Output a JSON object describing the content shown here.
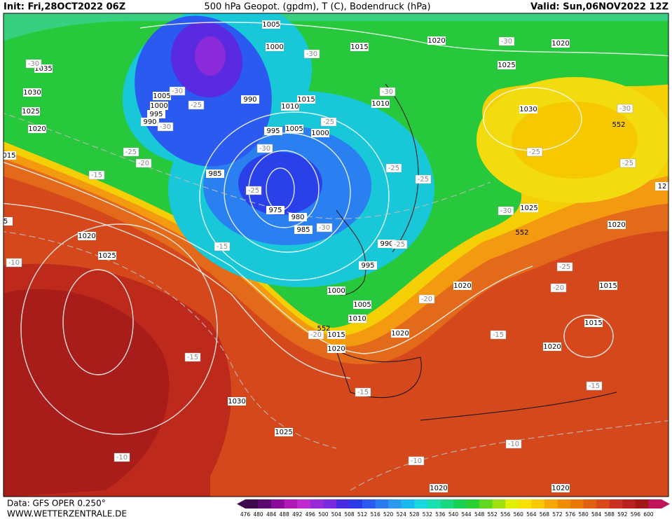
{
  "header": {
    "init": "Init: Fri,28OCT2022 06Z",
    "title": "500 hPa Geopot. (gpdm), T (C), Bodendruck (hPa)",
    "valid": "Valid: Sun,06NOV2022 12Z"
  },
  "map": {
    "pressure_labels": [
      1005,
      1000,
      1015,
      1020,
      1020,
      1025,
      1035,
      1030,
      1025,
      1020,
      1005,
      1000,
      995,
      990,
      990,
      1010,
      1015,
      1010,
      1005,
      1000,
      995,
      1030,
      985,
      975,
      980,
      985,
      990,
      995,
      1000,
      1005,
      1010,
      1015,
      1020,
      1020,
      1020,
      1025,
      1020,
      1015,
      1015,
      1020,
      1020,
      1025,
      1030,
      1025,
      1020,
      1020
    ],
    "temperature_labels": [
      -30,
      -30,
      -30,
      -25,
      -30,
      -25,
      -20,
      -15,
      -30,
      -25,
      -25,
      -25,
      -30,
      -30,
      -30,
      -25,
      -25,
      -30,
      -25,
      -30,
      -25,
      -15,
      -10,
      -25,
      -20,
      -20,
      -15,
      -20,
      -15,
      -15,
      -15,
      -10,
      -10,
      -10
    ],
    "geopotential_labels": [
      552,
      552,
      552
    ],
    "clipped_labels": [
      "015",
      "12",
      "5"
    ]
  },
  "footer": {
    "source": "Data: GFS OPER 0.250°",
    "website": "WWW.WETTERZENTRALE.DE"
  },
  "colorbar": {
    "ticks": [
      476,
      480,
      484,
      488,
      492,
      496,
      500,
      504,
      508,
      512,
      516,
      520,
      524,
      528,
      532,
      536,
      540,
      544,
      548,
      552,
      556,
      560,
      564,
      568,
      572,
      576,
      580,
      584,
      588,
      592,
      596,
      600
    ],
    "colors": [
      "#3d0a4d",
      "#5c0a72",
      "#8a0a9c",
      "#b01ab8",
      "#c02ad0",
      "#9a2ad8",
      "#7a2ae0",
      "#4a2ae0",
      "#2a3ae8",
      "#2a5af0",
      "#2a7af0",
      "#2a9af0",
      "#1ab8f0",
      "#1ad8e0",
      "#1ae0b0",
      "#1ad880",
      "#1ad050",
      "#2ad030",
      "#60d820",
      "#a0e010",
      "#e0f000",
      "#f8e000",
      "#f8c800",
      "#f8a800",
      "#f08c00",
      "#e87800",
      "#e06010",
      "#d84818",
      "#c83020",
      "#b82020",
      "#a01818",
      "#c0145a"
    ]
  }
}
